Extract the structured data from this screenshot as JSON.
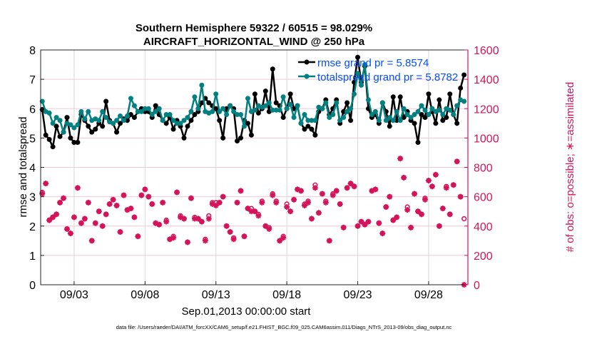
{
  "chart_data": {
    "type": "line",
    "title": [
      "Southern Hemisphere 59322 / 60515 = 98.029%",
      "AIRCRAFT_HORIZONTAL_WIND @ 250 hPa"
    ],
    "xlabel": "Sep.01,2013 00:00:00 start",
    "ylabel": "rmse and totalspread",
    "ylabel_right": "# of obs: o=possible; ∗=assimilated",
    "footer": "data file: /Users/raeder/DAI/ATM_forcXX/CAM6_setup/f.e21.FHIST_BGC.f09_025.CAM6assim.011/Diags_NTrS_2013-09/obs_diag_output.nc",
    "xlim": [
      0.64,
      30.77
    ],
    "ylim": [
      0,
      8
    ],
    "ylim_right": [
      0,
      1600
    ],
    "grid": true,
    "legend_placement": "top-right",
    "xticks": [
      3,
      8,
      13,
      18,
      23,
      28
    ],
    "xtick_labels": [
      "09/03",
      "09/08",
      "09/13",
      "09/18",
      "09/23",
      "09/28"
    ],
    "yticks": [
      "0",
      "1",
      "2",
      "3",
      "4",
      "5",
      "6",
      "7",
      "8"
    ],
    "yticks_right": [
      "0",
      "200",
      "400",
      "600",
      "800",
      "1000",
      "1200",
      "1400",
      "1600"
    ],
    "colors": {
      "rmse": "#000000",
      "totalspread": "#008080",
      "obs": "#d4145a",
      "legend_text": "#0050ff",
      "right_axis": "#d4145a"
    },
    "x": [
      0.75,
      1,
      1.25,
      1.5,
      1.75,
      2,
      2.25,
      2.5,
      2.75,
      3,
      3.25,
      3.5,
      3.75,
      4,
      4.25,
      4.5,
      4.75,
      5,
      5.25,
      5.5,
      5.75,
      6,
      6.25,
      6.5,
      6.75,
      7,
      7.25,
      7.5,
      7.75,
      8,
      8.25,
      8.5,
      8.75,
      9,
      9.25,
      9.5,
      9.75,
      10,
      10.25,
      10.5,
      10.75,
      11,
      11.25,
      11.5,
      11.75,
      12,
      12.25,
      12.5,
      12.75,
      13,
      13.25,
      13.5,
      13.75,
      14,
      14.25,
      14.5,
      14.75,
      15,
      15.25,
      15.5,
      15.75,
      16,
      16.25,
      16.5,
      16.75,
      17,
      17.25,
      17.5,
      17.75,
      18,
      18.25,
      18.5,
      18.75,
      19,
      19.25,
      19.5,
      19.75,
      20,
      20.25,
      20.5,
      20.75,
      21,
      21.25,
      21.5,
      21.75,
      22,
      22.25,
      22.5,
      22.75,
      23,
      23.25,
      23.5,
      23.75,
      24,
      24.25,
      24.5,
      24.75,
      25,
      25.25,
      25.5,
      25.75,
      26,
      26.25,
      26.5,
      26.75,
      27,
      27.25,
      27.5,
      27.75,
      28,
      28.25,
      28.5,
      28.75,
      29,
      29.25,
      29.5,
      29.75,
      30,
      30.25,
      30.5
    ],
    "series": [
      {
        "name": "rmse grand pr = 5.8574",
        "axis": "left",
        "values": [
          5.97,
          5.1,
          4.95,
          4.7,
          5.4,
          5.05,
          5.2,
          5.7,
          5.0,
          4.85,
          4.85,
          5.8,
          5.6,
          5.4,
          5.2,
          5.3,
          5.5,
          5.4,
          6.25,
          5.6,
          5.5,
          5.2,
          5.5,
          5.65,
          5.6,
          5.8,
          5.7,
          5.9,
          6.0,
          5.9,
          5.9,
          5.7,
          6.1,
          5.8,
          5.6,
          5.5,
          5.7,
          5.3,
          5.6,
          5.4,
          5.0,
          5.4,
          5.6,
          5.8,
          5.9,
          6.2,
          6.35,
          6.2,
          6.1,
          6.0,
          5.6,
          5.0,
          6.0,
          6.1,
          6.0,
          4.9,
          5.0,
          5.6,
          5.5,
          5.1,
          6.5,
          5.85,
          6.0,
          6.6,
          5.9,
          7.35,
          6.2,
          6.1,
          5.7,
          6.0,
          6.5,
          6.0,
          6.1,
          5.5,
          5.3,
          5.4,
          5.3,
          5.1,
          5.9,
          6.0,
          6.3,
          5.8,
          6.0,
          6.3,
          5.5,
          5.9,
          6.2,
          5.6,
          6.9,
          7.75,
          6.9,
          7.45,
          6.0,
          5.7,
          5.8,
          5.5,
          6.2,
          5.9,
          5.4,
          6.4,
          5.6,
          6.4,
          5.7,
          5.9,
          5.6,
          5.5,
          4.85,
          5.8,
          5.7,
          6.5,
          5.9,
          5.5,
          6.3,
          5.6,
          5.7,
          6.5,
          5.8,
          5.5,
          6.7,
          7.15
        ]
      },
      {
        "name": "totalspread grand pr = 5.8782",
        "axis": "left",
        "values": [
          6.25,
          5.9,
          5.85,
          5.5,
          5.7,
          5.6,
          5.2,
          5.5,
          5.45,
          5.35,
          5.45,
          5.9,
          5.65,
          5.9,
          5.6,
          5.65,
          5.6,
          5.9,
          5.7,
          5.55,
          5.5,
          5.6,
          5.75,
          5.6,
          5.75,
          6.35,
          6.1,
          5.9,
          5.9,
          6.0,
          6.0,
          5.8,
          5.9,
          6.0,
          5.6,
          5.8,
          5.8,
          5.6,
          5.5,
          5.5,
          5.6,
          5.7,
          5.9,
          6.4,
          6.0,
          6.8,
          5.9,
          5.85,
          5.9,
          6.5,
          5.9,
          6.0,
          5.8,
          6.1,
          5.9,
          5.8,
          5.8,
          5.4,
          6.35,
          5.9,
          5.95,
          6.1,
          6.05,
          6.1,
          6.2,
          5.95,
          5.95,
          5.95,
          6.4,
          6.0,
          6.15,
          5.7,
          6.1,
          5.5,
          5.8,
          5.6,
          5.6,
          5.6,
          6.05,
          6.0,
          6.2,
          5.7,
          5.8,
          6.2,
          5.6,
          5.7,
          5.9,
          6.0,
          6.5,
          7.2,
          6.8,
          7.5,
          6.3,
          5.8,
          5.9,
          5.6,
          6.2,
          5.6,
          5.7,
          5.6,
          5.9,
          5.6,
          6.0,
          5.8,
          5.7,
          5.8,
          5.9,
          6.1,
          5.95,
          5.8,
          6.0,
          5.9,
          5.95,
          5.8,
          6.0,
          5.95,
          5.8,
          6.1,
          6.3,
          6.25
        ]
      },
      {
        "name": "possible",
        "axis": "right",
        "marker": "o",
        "values": [
          630,
          690,
          440,
          460,
          480,
          560,
          590,
          380,
          350,
          460,
          660,
          420,
          450,
          560,
          300,
          420,
          500,
          400,
          480,
          550,
          580,
          540,
          360,
          610,
          510,
          520,
          460,
          330,
          610,
          650,
          600,
          550,
          420,
          410,
          560,
          440,
          310,
          330,
          630,
          470,
          450,
          290,
          590,
          460,
          450,
          430,
          310,
          470,
          560,
          560,
          560,
          600,
          400,
          360,
          320,
          560,
          640,
          330,
          520,
          520,
          500,
          480,
          570,
          400,
          390,
          620,
          570,
          300,
          330,
          550,
          500,
          580,
          650,
          640,
          550,
          570,
          450,
          680,
          490,
          620,
          570,
          300,
          620,
          640,
          550,
          390,
          660,
          690,
          670,
          400,
          430,
          410,
          430,
          640,
          650,
          420,
          350,
          530,
          600,
          440,
          460,
          860,
          730,
          530,
          390,
          620,
          500,
          480,
          590,
          710,
          670,
          750,
          400,
          520,
          670,
          480,
          680,
          840,
          600,
          450
        ]
      },
      {
        "name": "assimilated",
        "axis": "right",
        "marker": "*",
        "values": [
          620,
          690,
          440,
          460,
          480,
          560,
          590,
          380,
          350,
          460,
          660,
          420,
          450,
          560,
          300,
          420,
          500,
          400,
          480,
          550,
          580,
          540,
          360,
          610,
          510,
          520,
          460,
          330,
          610,
          650,
          600,
          550,
          420,
          410,
          560,
          430,
          310,
          320,
          630,
          460,
          450,
          290,
          590,
          450,
          450,
          430,
          300,
          450,
          550,
          540,
          560,
          600,
          400,
          360,
          310,
          560,
          640,
          330,
          520,
          500,
          500,
          470,
          560,
          400,
          380,
          610,
          560,
          300,
          320,
          530,
          500,
          580,
          650,
          640,
          540,
          560,
          450,
          660,
          490,
          620,
          560,
          300,
          610,
          640,
          550,
          390,
          660,
          690,
          670,
          400,
          430,
          410,
          430,
          640,
          650,
          420,
          350,
          530,
          600,
          440,
          460,
          860,
          730,
          510,
          390,
          620,
          500,
          480,
          580,
          710,
          670,
          750,
          400,
          520,
          660,
          480,
          680,
          840,
          600,
          0
        ]
      }
    ]
  }
}
